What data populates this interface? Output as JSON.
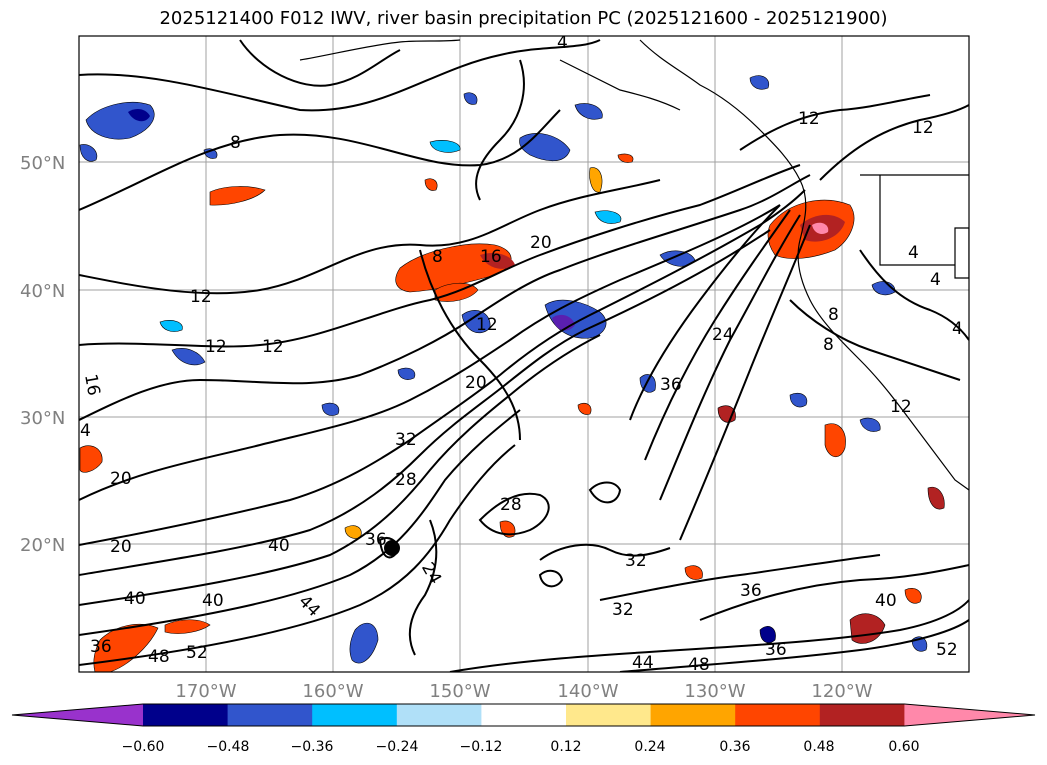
{
  "title": "2025121400 F012 IWV, river basin precipitation PC (2025121600 - 2025121900)",
  "lat_labels": [
    "50°N",
    "40°N",
    "30°N",
    "20°N"
  ],
  "lon_labels": [
    "170°W",
    "160°W",
    "150°W",
    "140°W",
    "130°W",
    "120°W"
  ],
  "colorbar": {
    "ticks": [
      "−0.60",
      "−0.48",
      "−0.36",
      "−0.24",
      "−0.12",
      "0.12",
      "0.24",
      "0.36",
      "0.48",
      "0.60"
    ],
    "colors": [
      "#9932cc",
      "#00008b",
      "#3155cc",
      "#00bfff",
      "#b0e0f8",
      "#ffffff",
      "#ffe88c",
      "#ffa500",
      "#ff4500",
      "#b22222",
      "#ff88aa"
    ]
  },
  "contour_labels": [
    "4",
    "8",
    "8",
    "12",
    "12",
    "12",
    "12",
    "12",
    "12",
    "16",
    "16",
    "20",
    "20",
    "20",
    "20",
    "24",
    "24",
    "28",
    "28",
    "32",
    "32",
    "32",
    "36",
    "36",
    "36",
    "36",
    "36",
    "40",
    "40",
    "40",
    "40",
    "44",
    "44",
    "48",
    "48",
    "52",
    "52",
    "8",
    "8",
    "4",
    "4",
    "4",
    "12",
    "4"
  ]
}
